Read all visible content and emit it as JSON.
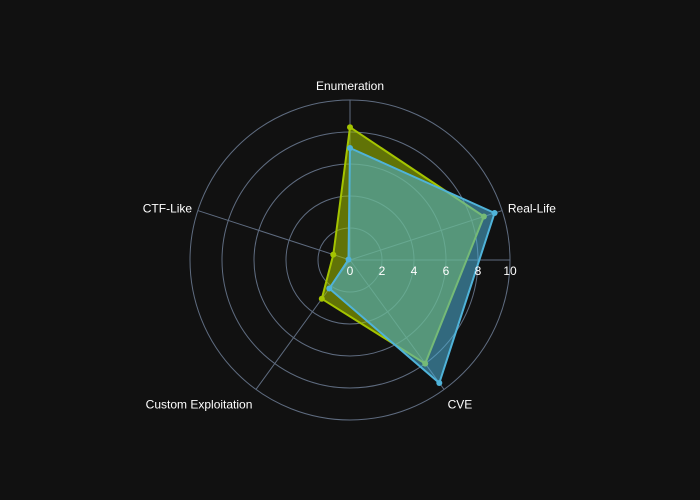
{
  "chart_data": {
    "type": "radar",
    "categories": [
      "Enumeration",
      "Real-Life",
      "CVE",
      "Custom Exploitation",
      "CTF-Like"
    ],
    "radial_ticks": [
      "0",
      "2",
      "4",
      "6",
      "8",
      "10"
    ],
    "range": [
      0,
      10
    ],
    "series": [
      {
        "values": [
          8.3,
          8.8,
          8.0,
          3.0,
          1.1
        ],
        "color": "#a4c400"
      },
      {
        "values": [
          7.0,
          9.5,
          9.5,
          2.2,
          0.1
        ],
        "color": "#4fb3d9"
      }
    ]
  },
  "colors": {
    "background": "#111111",
    "grid": "#5f6c80",
    "text": "#ffffff"
  }
}
